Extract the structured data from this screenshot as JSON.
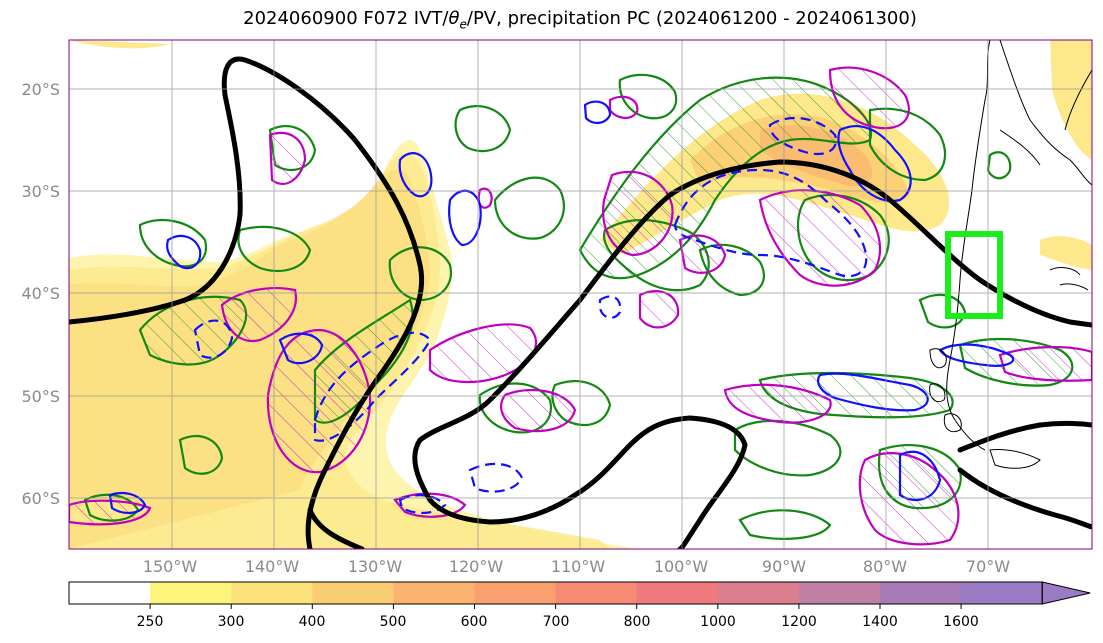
{
  "title": {
    "prefix": "2024060900 F072 IVT/",
    "theta": "θ",
    "sub": "e",
    "suffix": "/PV, precipitation PC (2024061200 - 2024061300)"
  },
  "axes": {
    "lon_ticks": [
      "150°W",
      "140°W",
      "130°W",
      "120°W",
      "110°W",
      "100°W",
      "90°W",
      "80°W",
      "70°W"
    ],
    "lat_ticks": [
      "20°S",
      "30°S",
      "40°S",
      "50°S",
      "60°S"
    ]
  },
  "colorbar": {
    "ticks": [
      "250",
      "300",
      "400",
      "500",
      "600",
      "700",
      "800",
      "1000",
      "1200",
      "1400",
      "1600"
    ],
    "colors": [
      "#ffffff",
      "#fdf47c",
      "#fce27a",
      "#fbcd72",
      "#fab470",
      "#f9a06e",
      "#f68a72",
      "#f07a7e",
      "#dc7e8e",
      "#c080a6",
      "#a97ab8",
      "#9a7bc4"
    ],
    "extend": "max"
  },
  "colors": {
    "pv_contour": "#000000",
    "theta_warm": "#c000c0",
    "theta_cold": "#1010ff",
    "precip": "#138813",
    "target_box": "#19ee19"
  }
}
